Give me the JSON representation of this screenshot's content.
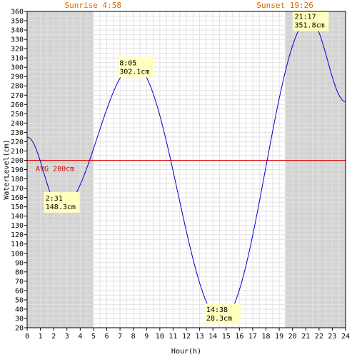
{
  "chart_data": {
    "type": "line",
    "title": "",
    "xlabel": "Hour(h)",
    "ylabel": "WaterLevel(cm)",
    "xlim": [
      0,
      24
    ],
    "ylim": [
      20,
      360
    ],
    "x_ticks": [
      0,
      1,
      2,
      3,
      4,
      5,
      6,
      7,
      8,
      9,
      10,
      11,
      12,
      13,
      14,
      15,
      16,
      17,
      18,
      19,
      20,
      21,
      22,
      23,
      24
    ],
    "y_ticks": [
      20,
      30,
      40,
      50,
      60,
      70,
      80,
      90,
      100,
      110,
      120,
      130,
      140,
      150,
      160,
      170,
      180,
      190,
      200,
      210,
      220,
      230,
      240,
      250,
      260,
      270,
      280,
      290,
      300,
      310,
      320,
      330,
      340,
      350,
      360
    ],
    "grid": true,
    "line_color": "#0000cc",
    "series": [
      {
        "x": [
          0,
          2.517,
          8.083,
          14.633,
          21.283,
          24
        ],
        "values": [
          225,
          148.3,
          302.1,
          28.3,
          351.8,
          263
        ]
      }
    ],
    "extremes": [
      {
        "time": "2:31",
        "level": "148.3cm",
        "x": 2.517,
        "y": 148.3
      },
      {
        "time": "8:05",
        "level": "302.1cm",
        "x": 8.083,
        "y": 302.1
      },
      {
        "time": "14:38",
        "level": "28.3cm",
        "x": 14.633,
        "y": 28.3
      },
      {
        "time": "21:17",
        "level": "351.8cm",
        "x": 21.283,
        "y": 351.8
      }
    ],
    "average": {
      "label": "AVG 200cm",
      "value": 200,
      "color": "#e00000"
    },
    "sunrise": {
      "label": "Sunrise 4:58",
      "hour": 4.967
    },
    "sunset": {
      "label": "Sunset 19:26",
      "hour": 19.433
    },
    "night_color": "#d3d3d3",
    "label_color": "#d46a00"
  }
}
